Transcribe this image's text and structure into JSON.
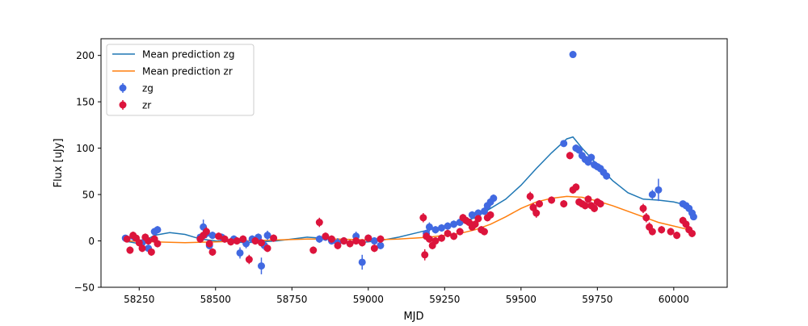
{
  "chart_data": {
    "type": "scatter",
    "xlabel": "MJD",
    "ylabel": "Flux [uJy]",
    "xlim": [
      58125,
      60175
    ],
    "ylim": [
      -50,
      218
    ],
    "xticks": [
      58250,
      58500,
      58750,
      59000,
      59250,
      59500,
      59750,
      60000
    ],
    "xtick_labels": [
      "58250",
      "58500",
      "58750",
      "59000",
      "59250",
      "59500",
      "59750",
      "60000"
    ],
    "yticks": [
      -50,
      0,
      50,
      100,
      150,
      200
    ],
    "ytick_labels": [
      "−50",
      "0",
      "50",
      "100",
      "150",
      "200"
    ],
    "grid": false,
    "legend_position": "upper left",
    "legend": [
      {
        "label": "Mean prediction zg",
        "kind": "line",
        "color": "#1f77b4"
      },
      {
        "label": "Mean prediction zr",
        "kind": "line",
        "color": "#ff7f0e"
      },
      {
        "label": "zg",
        "kind": "errorbar",
        "color": "#4169e1"
      },
      {
        "label": "zr",
        "kind": "errorbar",
        "color": "#dc143c"
      }
    ],
    "series": [
      {
        "name": "Mean prediction zg",
        "kind": "line",
        "color": "#1f77b4",
        "x": [
          58200,
          58250,
          58300,
          58350,
          58400,
          58450,
          58500,
          58550,
          58600,
          58650,
          58700,
          58750,
          58800,
          58850,
          58900,
          58950,
          59000,
          59050,
          59100,
          59150,
          59200,
          59250,
          59300,
          59350,
          59400,
          59450,
          59500,
          59550,
          59600,
          59650,
          59670,
          59700,
          59750,
          59800,
          59850,
          59900,
          59950,
          60000,
          60050,
          60060
        ],
        "y": [
          0,
          -3,
          6,
          9,
          7,
          2,
          0,
          -1,
          -2,
          -1,
          0,
          2,
          4,
          3,
          0,
          -2,
          -1,
          1,
          4,
          8,
          12,
          16,
          20,
          25,
          35,
          45,
          60,
          78,
          95,
          110,
          112,
          100,
          82,
          65,
          52,
          45,
          44,
          42,
          38,
          36
        ]
      },
      {
        "name": "Mean prediction zr",
        "kind": "line",
        "color": "#ff7f0e",
        "x": [
          58200,
          58300,
          58400,
          58500,
          58600,
          58700,
          58800,
          58900,
          59000,
          59100,
          59150,
          59200,
          59250,
          59300,
          59350,
          59400,
          59450,
          59500,
          59550,
          59600,
          59650,
          59700,
          59750,
          59800,
          59850,
          59900,
          59950,
          60000,
          60050,
          60060
        ],
        "y": [
          0,
          -1,
          -2,
          -1,
          0,
          1,
          2,
          2,
          1,
          2,
          3,
          4,
          6,
          8,
          12,
          18,
          26,
          35,
          42,
          46,
          48,
          47,
          43,
          38,
          32,
          26,
          20,
          16,
          12,
          11
        ]
      },
      {
        "name": "zg",
        "kind": "errorbar",
        "color": "#4169e1",
        "x": [
          58205,
          58230,
          58260,
          58280,
          58300,
          58310,
          58450,
          58460,
          58470,
          58480,
          58490,
          58520,
          58560,
          58580,
          58600,
          58620,
          58640,
          58650,
          58660,
          58670,
          58840,
          58860,
          58880,
          58900,
          58920,
          58960,
          58980,
          59000,
          59020,
          59040,
          59190,
          59200,
          59220,
          59240,
          59260,
          59280,
          59300,
          59320,
          59340,
          59360,
          59380,
          59390,
          59400,
          59410,
          59640,
          59670,
          59680,
          59690,
          59700,
          59710,
          59720,
          59730,
          59740,
          59750,
          59760,
          59770,
          59780,
          59930,
          59950,
          60030,
          60040,
          60050,
          60060,
          60065
        ],
        "y": [
          3,
          5,
          -2,
          -8,
          10,
          12,
          4,
          15,
          8,
          -5,
          6,
          4,
          2,
          -13,
          -3,
          2,
          4,
          -27,
          -5,
          6,
          2,
          4,
          0,
          -2,
          0,
          5,
          -23,
          3,
          0,
          -5,
          8,
          15,
          12,
          14,
          16,
          18,
          20,
          22,
          28,
          30,
          32,
          38,
          42,
          46,
          105,
          201,
          100,
          98,
          92,
          88,
          85,
          90,
          82,
          80,
          78,
          74,
          70,
          50,
          55,
          40,
          38,
          35,
          30,
          26
        ],
        "err": [
          3,
          5,
          3,
          4,
          4,
          4,
          3,
          8,
          5,
          4,
          4,
          4,
          4,
          6,
          5,
          4,
          4,
          9,
          5,
          5,
          4,
          4,
          4,
          5,
          4,
          5,
          8,
          4,
          4,
          4,
          4,
          5,
          4,
          4,
          4,
          4,
          4,
          4,
          4,
          4,
          4,
          4,
          4,
          4,
          3,
          3,
          4,
          4,
          4,
          4,
          4,
          4,
          4,
          4,
          4,
          4,
          4,
          5,
          12,
          3,
          3,
          3,
          3,
          3
        ]
      },
      {
        "name": "zr",
        "kind": "errorbar",
        "color": "#dc143c",
        "x": [
          58210,
          58220,
          58230,
          58240,
          58250,
          58260,
          58270,
          58280,
          58290,
          58300,
          58310,
          58450,
          58460,
          58470,
          58480,
          58490,
          58510,
          58530,
          58550,
          58570,
          58590,
          58610,
          58630,
          58650,
          58670,
          58690,
          58820,
          58840,
          58860,
          58880,
          58900,
          58920,
          58940,
          58960,
          58980,
          59000,
          59020,
          59040,
          59180,
          59185,
          59190,
          59200,
          59210,
          59220,
          59240,
          59260,
          59280,
          59300,
          59310,
          59320,
          59330,
          59340,
          59350,
          59360,
          59370,
          59380,
          59390,
          59400,
          59530,
          59540,
          59550,
          59560,
          59600,
          59640,
          59660,
          59670,
          59680,
          59690,
          59700,
          59710,
          59720,
          59730,
          59740,
          59750,
          59760,
          59900,
          59910,
          59920,
          59930,
          59960,
          59990,
          60010,
          60030,
          60040,
          60050,
          60060
        ],
        "y": [
          2,
          -10,
          6,
          3,
          -2,
          -8,
          4,
          0,
          -12,
          2,
          -3,
          2,
          6,
          10,
          -3,
          -12,
          5,
          2,
          -1,
          0,
          2,
          -20,
          0,
          -2,
          -8,
          3,
          -10,
          20,
          5,
          2,
          -5,
          0,
          -3,
          0,
          -2,
          3,
          -8,
          2,
          25,
          -15,
          5,
          2,
          -5,
          0,
          3,
          8,
          5,
          10,
          25,
          22,
          20,
          15,
          18,
          24,
          12,
          10,
          25,
          28,
          48,
          36,
          30,
          40,
          44,
          40,
          92,
          55,
          58,
          42,
          40,
          38,
          45,
          38,
          35,
          42,
          40,
          35,
          25,
          15,
          10,
          12,
          10,
          6,
          22,
          18,
          12,
          8
        ],
        "err": [
          3,
          4,
          4,
          3,
          4,
          4,
          4,
          4,
          4,
          4,
          4,
          4,
          4,
          5,
          4,
          4,
          4,
          4,
          4,
          4,
          4,
          5,
          4,
          4,
          4,
          4,
          4,
          5,
          4,
          4,
          4,
          4,
          4,
          4,
          4,
          4,
          4,
          4,
          5,
          6,
          4,
          4,
          4,
          4,
          4,
          4,
          4,
          4,
          4,
          4,
          4,
          4,
          4,
          4,
          4,
          4,
          4,
          4,
          5,
          5,
          5,
          4,
          4,
          4,
          4,
          4,
          4,
          4,
          4,
          4,
          4,
          4,
          4,
          4,
          4,
          5,
          5,
          5,
          4,
          4,
          4,
          4,
          4,
          4,
          4,
          4
        ]
      }
    ]
  }
}
